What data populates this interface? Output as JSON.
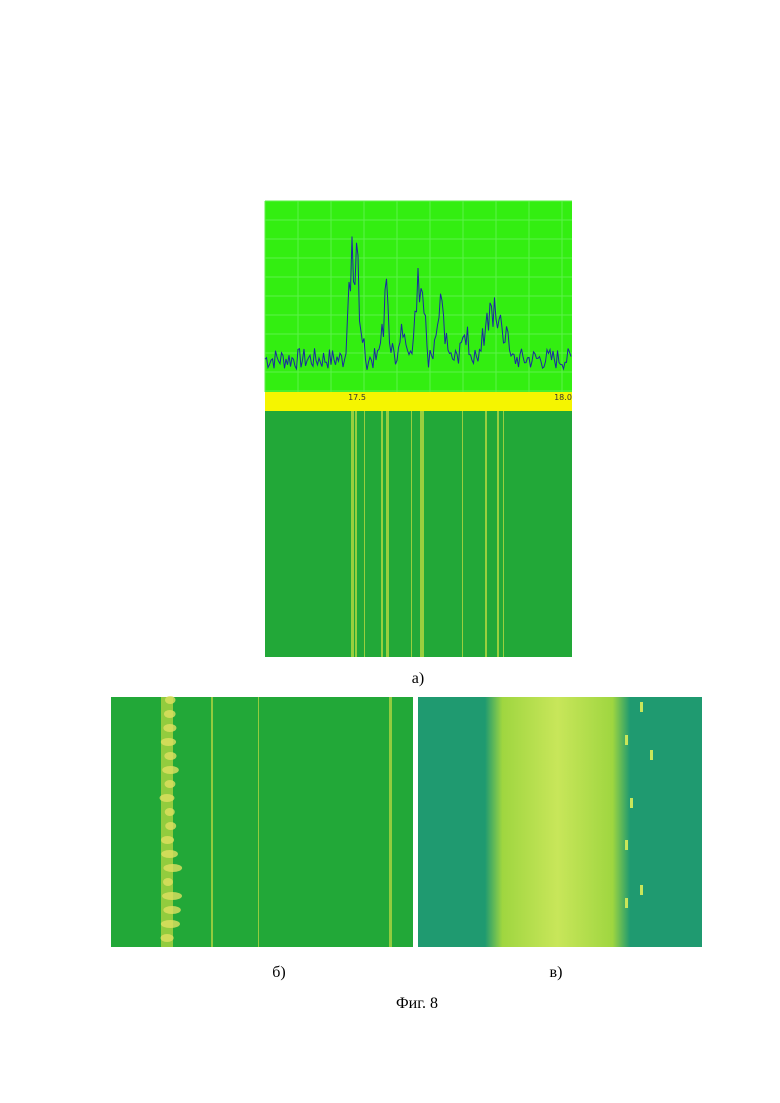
{
  "figure": {
    "panels": [
      {
        "label": "а)",
        "axis_labels": [
          "17.5",
          "18.0"
        ]
      },
      {
        "label": "б)"
      },
      {
        "label": "в)"
      }
    ],
    "caption": "Фиг. 8"
  }
}
